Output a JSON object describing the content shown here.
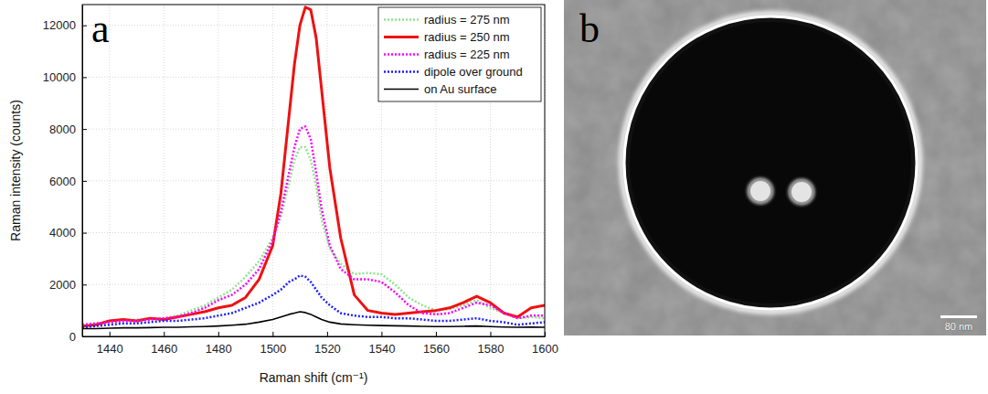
{
  "chart_data": {
    "type": "line",
    "panel": "a",
    "x_label": "Raman shift (cm⁻¹)",
    "y_label": "Raman intensity (counts)",
    "x": [
      1430,
      1435,
      1440,
      1445,
      1450,
      1455,
      1460,
      1465,
      1470,
      1475,
      1480,
      1485,
      1490,
      1495,
      1500,
      1503,
      1506,
      1508,
      1510,
      1512,
      1514,
      1516,
      1518,
      1521,
      1525,
      1530,
      1535,
      1540,
      1545,
      1550,
      1555,
      1560,
      1565,
      1570,
      1575,
      1580,
      1585,
      1590,
      1595,
      1600
    ],
    "series": [
      {
        "name": "radius = 275 nm",
        "color": "#8fe38f",
        "line_style": "dotted",
        "values": [
          450,
          500,
          550,
          600,
          650,
          700,
          700,
          800,
          1000,
          1200,
          1500,
          1800,
          2300,
          2900,
          3800,
          4600,
          5900,
          6800,
          7300,
          7300,
          6800,
          5800,
          4500,
          3400,
          2800,
          2400,
          2450,
          2400,
          2000,
          1500,
          1200,
          1000,
          1050,
          1200,
          1400,
          1100,
          900,
          700,
          750,
          700
        ]
      },
      {
        "name": "radius = 250 nm",
        "color": "#ee1111",
        "line_style": "solid",
        "values": [
          400,
          450,
          600,
          650,
          600,
          700,
          650,
          750,
          850,
          950,
          1100,
          1200,
          1500,
          2200,
          3500,
          5500,
          8500,
          10500,
          12000,
          12700,
          12600,
          11500,
          9500,
          6500,
          3800,
          1600,
          1000,
          900,
          850,
          900,
          950,
          1000,
          1100,
          1300,
          1550,
          1300,
          900,
          750,
          1100,
          1200
        ]
      },
      {
        "name": "radius = 225 nm",
        "color": "#ff00ff",
        "line_style": "dotted",
        "values": [
          450,
          500,
          550,
          600,
          600,
          650,
          700,
          750,
          900,
          1100,
          1400,
          1600,
          2000,
          2600,
          3700,
          4800,
          6300,
          7300,
          8000,
          8100,
          7600,
          6300,
          4900,
          3500,
          2600,
          2200,
          2200,
          2100,
          1700,
          1200,
          900,
          850,
          900,
          1100,
          1300,
          1200,
          900,
          700,
          800,
          800
        ]
      },
      {
        "name": "dipole over ground",
        "color": "#1f1fff",
        "line_style": "dotted",
        "values": [
          350,
          400,
          450,
          500,
          500,
          550,
          600,
          600,
          650,
          700,
          800,
          900,
          1100,
          1300,
          1600,
          1800,
          2100,
          2200,
          2350,
          2300,
          2100,
          1800,
          1500,
          1200,
          900,
          800,
          750,
          750,
          700,
          700,
          650,
          600,
          600,
          650,
          700,
          600,
          550,
          450,
          500,
          550
        ]
      },
      {
        "name": "on Au surface",
        "color": "#000000",
        "line_style": "solid",
        "values": [
          300,
          300,
          320,
          330,
          330,
          340,
          350,
          350,
          370,
          380,
          400,
          430,
          470,
          550,
          650,
          750,
          850,
          900,
          950,
          920,
          850,
          750,
          650,
          550,
          480,
          450,
          430,
          420,
          410,
          400,
          390,
          380,
          380,
          390,
          400,
          380,
          360,
          350,
          360,
          350
        ]
      }
    ],
    "xlim": [
      1430,
      1600
    ],
    "xticks": [
      1440,
      1460,
      1480,
      1500,
      1520,
      1540,
      1560,
      1580,
      1600
    ],
    "ylim": [
      0,
      12800
    ],
    "yticks": [
      0,
      2000,
      4000,
      6000,
      8000,
      10000,
      12000
    ],
    "grid": true,
    "legend": "top-right"
  },
  "image": {
    "label": "b",
    "scale_bar": "80 nm"
  }
}
